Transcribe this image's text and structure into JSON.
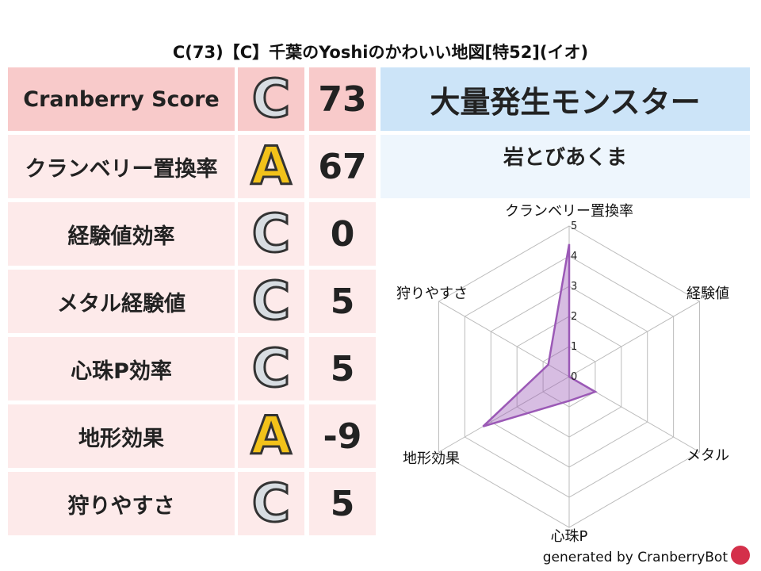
{
  "title": "C(73)【C】千葉のYoshiのかわいい地図[特52](イオ)",
  "rows": [
    {
      "label": "Cranberry Score",
      "grade": "C",
      "value": "73"
    },
    {
      "label": "クランベリー置換率",
      "grade": "A",
      "value": "67"
    },
    {
      "label": "経験値効率",
      "grade": "C",
      "value": "0"
    },
    {
      "label": "メタル経験値",
      "grade": "C",
      "value": "5"
    },
    {
      "label": "心珠P効率",
      "grade": "C",
      "value": "5"
    },
    {
      "label": "地形効果",
      "grade": "A",
      "value": "-9"
    },
    {
      "label": "狩りやすさ",
      "grade": "C",
      "value": "5"
    }
  ],
  "monster": {
    "heading": "大量発生モンスター",
    "name": "岩とびあくま"
  },
  "footer": "generated by CranberryBot",
  "chart_data": {
    "type": "radar",
    "categories": [
      "クランベリー置換率",
      "経験値",
      "メタル",
      "心珠P",
      "地形効果",
      "狩りやすさ"
    ],
    "values": [
      4.4,
      0,
      1,
      0.8,
      3.3,
      0.8
    ],
    "rlim": [
      0,
      5
    ],
    "ticks": [
      "0",
      "1",
      "2",
      "3",
      "4",
      "5"
    ],
    "color": "#9b59b6"
  }
}
